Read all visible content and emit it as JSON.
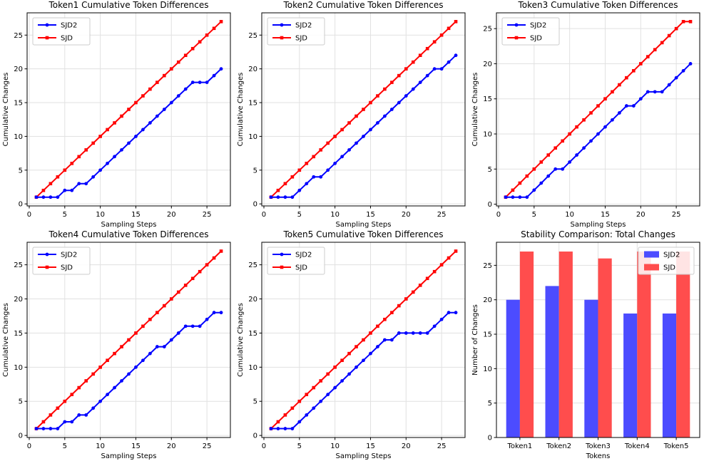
{
  "figure": {
    "background": "#ffffff",
    "colors": {
      "sjd2_line": "#0000ff",
      "sjd_line": "#ff0000",
      "sjd2_bar": "#4c4cff",
      "sjd_bar": "#ff4d4d",
      "grid": "#e1e1e1",
      "spine": "#000000",
      "text": "#000000",
      "legend_border": "#cccccc",
      "legend_bg": "rgba(255,255,255,0.85)"
    }
  },
  "chart_data": [
    {
      "type": "line",
      "title": "Token1 Cumulative Token Differences",
      "xlabel": "Sampling Steps",
      "ylabel": "Cumulative Changes",
      "x": [
        1,
        2,
        3,
        4,
        5,
        6,
        7,
        8,
        9,
        10,
        11,
        12,
        13,
        14,
        15,
        16,
        17,
        18,
        19,
        20,
        21,
        22,
        23,
        24,
        25,
        26,
        27
      ],
      "series": [
        {
          "name": "SJD2",
          "color": "#0000ff",
          "marker": "circle",
          "values": [
            1,
            1,
            1,
            1,
            2,
            2,
            3,
            3,
            4,
            5,
            6,
            7,
            8,
            9,
            10,
            11,
            12,
            13,
            14,
            15,
            16,
            17,
            18,
            18,
            18,
            19,
            20
          ]
        },
        {
          "name": "SJD",
          "color": "#ff0000",
          "marker": "square",
          "values": [
            1,
            2,
            3,
            4,
            5,
            6,
            7,
            8,
            9,
            10,
            11,
            12,
            13,
            14,
            15,
            16,
            17,
            18,
            19,
            20,
            21,
            22,
            23,
            24,
            25,
            26,
            27
          ]
        }
      ],
      "xlim": [
        -0.3,
        28.3
      ],
      "ylim": [
        -0.3,
        28.3
      ],
      "xticks": [
        0,
        5,
        10,
        15,
        20,
        25
      ],
      "yticks": [
        0,
        5,
        10,
        15,
        20,
        25
      ],
      "grid": true,
      "legend_position": "upper-left"
    },
    {
      "type": "line",
      "title": "Token2 Cumulative Token Differences",
      "xlabel": "Sampling Steps",
      "ylabel": "Cumulative Changes",
      "x": [
        1,
        2,
        3,
        4,
        5,
        6,
        7,
        8,
        9,
        10,
        11,
        12,
        13,
        14,
        15,
        16,
        17,
        18,
        19,
        20,
        21,
        22,
        23,
        24,
        25,
        26,
        27
      ],
      "series": [
        {
          "name": "SJD2",
          "color": "#0000ff",
          "marker": "circle",
          "values": [
            1,
            1,
            1,
            1,
            2,
            3,
            4,
            4,
            5,
            6,
            7,
            8,
            9,
            10,
            11,
            12,
            13,
            14,
            15,
            16,
            17,
            18,
            19,
            20,
            20,
            21,
            22
          ]
        },
        {
          "name": "SJD",
          "color": "#ff0000",
          "marker": "square",
          "values": [
            1,
            2,
            3,
            4,
            5,
            6,
            7,
            8,
            9,
            10,
            11,
            12,
            13,
            14,
            15,
            16,
            17,
            18,
            19,
            20,
            21,
            22,
            23,
            24,
            25,
            26,
            27
          ]
        }
      ],
      "xlim": [
        -0.3,
        28.3
      ],
      "ylim": [
        -0.3,
        28.3
      ],
      "xticks": [
        0,
        5,
        10,
        15,
        20,
        25
      ],
      "yticks": [
        0,
        5,
        10,
        15,
        20,
        25
      ],
      "grid": true,
      "legend_position": "upper-left"
    },
    {
      "type": "line",
      "title": "Token3 Cumulative Token Differences",
      "xlabel": "Sampling Steps",
      "ylabel": "Cumulative Changes",
      "x": [
        1,
        2,
        3,
        4,
        5,
        6,
        7,
        8,
        9,
        10,
        11,
        12,
        13,
        14,
        15,
        16,
        17,
        18,
        19,
        20,
        21,
        22,
        23,
        24,
        25,
        26,
        27
      ],
      "series": [
        {
          "name": "SJD2",
          "color": "#0000ff",
          "marker": "circle",
          "values": [
            1,
            1,
            1,
            1,
            2,
            3,
            4,
            5,
            5,
            6,
            7,
            8,
            9,
            10,
            11,
            12,
            13,
            14,
            14,
            15,
            16,
            16,
            16,
            17,
            18,
            19,
            20
          ]
        },
        {
          "name": "SJD",
          "color": "#ff0000",
          "marker": "square",
          "values": [
            1,
            2,
            3,
            4,
            5,
            6,
            7,
            8,
            9,
            10,
            11,
            12,
            13,
            14,
            15,
            16,
            17,
            18,
            19,
            20,
            21,
            22,
            23,
            24,
            25,
            26,
            26
          ]
        }
      ],
      "xlim": [
        -0.3,
        28.3
      ],
      "ylim": [
        -0.25,
        27.25
      ],
      "xticks": [
        0,
        5,
        10,
        15,
        20,
        25
      ],
      "yticks": [
        0,
        5,
        10,
        15,
        20,
        25
      ],
      "grid": true,
      "legend_position": "upper-left"
    },
    {
      "type": "line",
      "title": "Token4 Cumulative Token Differences",
      "xlabel": "Sampling Steps",
      "ylabel": "Cumulative Changes",
      "x": [
        1,
        2,
        3,
        4,
        5,
        6,
        7,
        8,
        9,
        10,
        11,
        12,
        13,
        14,
        15,
        16,
        17,
        18,
        19,
        20,
        21,
        22,
        23,
        24,
        25,
        26,
        27
      ],
      "series": [
        {
          "name": "SJD2",
          "color": "#0000ff",
          "marker": "circle",
          "values": [
            1,
            1,
            1,
            1,
            2,
            2,
            3,
            3,
            4,
            5,
            6,
            7,
            8,
            9,
            10,
            11,
            12,
            13,
            13,
            14,
            15,
            16,
            16,
            16,
            17,
            18,
            18
          ]
        },
        {
          "name": "SJD",
          "color": "#ff0000",
          "marker": "square",
          "values": [
            1,
            2,
            3,
            4,
            5,
            6,
            7,
            8,
            9,
            10,
            11,
            12,
            13,
            14,
            15,
            16,
            17,
            18,
            19,
            20,
            21,
            22,
            23,
            24,
            25,
            26,
            27
          ]
        }
      ],
      "xlim": [
        -0.3,
        28.3
      ],
      "ylim": [
        -0.3,
        28.3
      ],
      "xticks": [
        0,
        5,
        10,
        15,
        20,
        25
      ],
      "yticks": [
        0,
        5,
        10,
        15,
        20,
        25
      ],
      "grid": true,
      "legend_position": "upper-left"
    },
    {
      "type": "line",
      "title": "Token5 Cumulative Token Differences",
      "xlabel": "Sampling Steps",
      "ylabel": "Cumulative Changes",
      "x": [
        1,
        2,
        3,
        4,
        5,
        6,
        7,
        8,
        9,
        10,
        11,
        12,
        13,
        14,
        15,
        16,
        17,
        18,
        19,
        20,
        21,
        22,
        23,
        24,
        25,
        26,
        27
      ],
      "series": [
        {
          "name": "SJD2",
          "color": "#0000ff",
          "marker": "circle",
          "values": [
            1,
            1,
            1,
            1,
            2,
            3,
            4,
            5,
            6,
            7,
            8,
            9,
            10,
            11,
            12,
            13,
            14,
            14,
            15,
            15,
            15,
            15,
            15,
            16,
            17,
            18,
            18
          ]
        },
        {
          "name": "SJD",
          "color": "#ff0000",
          "marker": "square",
          "values": [
            1,
            2,
            3,
            4,
            5,
            6,
            7,
            8,
            9,
            10,
            11,
            12,
            13,
            14,
            15,
            16,
            17,
            18,
            19,
            20,
            21,
            22,
            23,
            24,
            25,
            26,
            27
          ]
        }
      ],
      "xlim": [
        -0.3,
        28.3
      ],
      "ylim": [
        -0.3,
        28.3
      ],
      "xticks": [
        0,
        5,
        10,
        15,
        20,
        25
      ],
      "yticks": [
        0,
        5,
        10,
        15,
        20,
        25
      ],
      "grid": true,
      "legend_position": "upper-left"
    },
    {
      "type": "bar",
      "title": "Stability Comparison: Total Changes",
      "xlabel": "Tokens",
      "ylabel": "Number of Changes",
      "categories": [
        "Token1",
        "Token2",
        "Token3",
        "Token4",
        "Token5"
      ],
      "series": [
        {
          "name": "SJD2",
          "color": "#4c4cff",
          "values": [
            20,
            22,
            20,
            18,
            18
          ]
        },
        {
          "name": "SJD",
          "color": "#ff4d4d",
          "values": [
            27,
            27,
            26,
            27,
            27
          ]
        }
      ],
      "xlim": [
        -0.6,
        4.6
      ],
      "ylim": [
        0,
        28.35
      ],
      "yticks": [
        0,
        5,
        10,
        15,
        20,
        25
      ],
      "bar_width": 0.35,
      "grid": true,
      "legend_position": "upper-right"
    }
  ]
}
